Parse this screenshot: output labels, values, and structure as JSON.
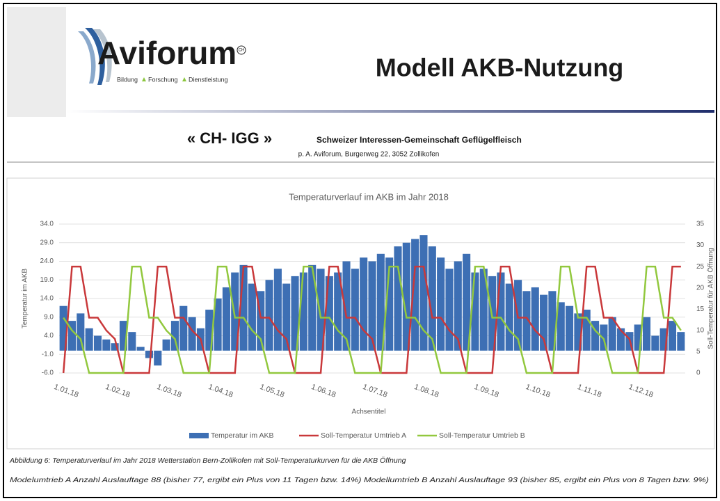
{
  "header": {
    "logo": "Aviforum",
    "logo_mark": "CH",
    "tagline": [
      "Bildung",
      "Forschung",
      "Dienstleistung"
    ],
    "title": "Modell AKB-Nutzung"
  },
  "org": {
    "short": "« CH- IGG »",
    "name": "Schweizer Interessen-Gemeinschaft Geflügelfleisch",
    "address": "p. A. Aviforum, Burgerweg 22, 3052 Zollikofen"
  },
  "chart_data": {
    "type": "bar",
    "title": "Temperaturverlauf im AKB im Jahr 2018",
    "xlabel": "Achsentitel",
    "ylabel": "Temperatur im AKB",
    "y2label": "Soll-Temperatur für AKB Öffnung",
    "categories": [
      "1.01.18",
      null,
      null,
      null,
      null,
      null,
      "1.02.18",
      null,
      null,
      null,
      null,
      null,
      "1.03.18",
      null,
      null,
      null,
      null,
      null,
      "1.04.18",
      null,
      null,
      null,
      null,
      null,
      "1.05.18",
      null,
      null,
      null,
      null,
      null,
      "1.06.18",
      null,
      null,
      null,
      null,
      null,
      "1.07.18",
      null,
      null,
      null,
      null,
      null,
      "1.08.18",
      null,
      null,
      null,
      null,
      null,
      null,
      "1.09.18",
      null,
      null,
      null,
      null,
      null,
      "1.10.18",
      null,
      null,
      null,
      null,
      null,
      "1.11.18",
      null,
      null,
      null,
      null,
      null,
      "1.12.18",
      null,
      null,
      null,
      null,
      null
    ],
    "series": [
      {
        "name": "Temperatur im AKB",
        "type": "bar",
        "color": "#3d6fb4",
        "values": [
          12,
          8,
          10,
          6,
          4,
          3,
          2,
          8,
          5,
          1,
          -2,
          -4,
          3,
          8,
          12,
          9,
          6,
          11,
          14,
          17,
          21,
          23,
          18,
          16,
          19,
          22,
          18,
          20,
          21,
          23,
          22,
          20,
          21,
          24,
          22,
          25,
          24,
          26,
          25,
          28,
          29,
          30,
          31,
          28,
          25,
          22,
          24,
          26,
          21,
          22,
          20,
          21,
          18,
          19,
          16,
          17,
          15,
          16,
          13,
          12,
          10,
          11,
          8,
          7,
          9,
          6,
          5,
          7,
          9,
          4,
          6,
          8,
          5
        ]
      },
      {
        "name": "Soll-Temperatur Umtrieb A",
        "type": "line",
        "axis": "y2",
        "color": "#c9383a",
        "values": [
          0,
          25,
          25,
          13,
          13,
          10,
          8,
          0,
          0,
          0,
          0,
          25,
          25,
          13,
          13,
          10,
          8,
          0,
          0,
          0,
          0,
          25,
          25,
          13,
          13,
          10,
          8,
          0,
          0,
          0,
          0,
          25,
          25,
          13,
          13,
          10,
          8,
          0,
          0,
          0,
          0,
          25,
          25,
          13,
          13,
          10,
          8,
          0,
          0,
          0,
          0,
          25,
          25,
          13,
          13,
          10,
          8,
          0,
          0,
          0,
          0,
          25,
          25,
          13,
          13,
          10,
          8,
          0,
          0,
          0,
          0,
          25,
          25
        ]
      },
      {
        "name": "Soll-Temperatur Umtrieb B",
        "type": "line",
        "axis": "y2",
        "color": "#92c83e",
        "values": [
          13,
          10,
          8,
          0,
          0,
          0,
          0,
          0,
          25,
          25,
          13,
          13,
          10,
          8,
          0,
          0,
          0,
          0,
          25,
          25,
          13,
          13,
          10,
          8,
          0,
          0,
          0,
          0,
          25,
          25,
          13,
          13,
          10,
          8,
          0,
          0,
          0,
          0,
          25,
          25,
          13,
          13,
          10,
          8,
          0,
          0,
          0,
          0,
          25,
          25,
          13,
          13,
          10,
          8,
          0,
          0,
          0,
          0,
          25,
          25,
          13,
          13,
          10,
          8,
          0,
          0,
          0,
          0,
          25,
          25,
          13,
          13,
          10
        ]
      }
    ],
    "ylim": [
      -6,
      34
    ],
    "yticks": [
      {
        "value": -6,
        "label": "-6.0"
      },
      {
        "value": -1,
        "label": "-1.0"
      },
      {
        "value": 4,
        "label": "4.0"
      },
      {
        "value": 9,
        "label": "9.0"
      },
      {
        "value": 14,
        "label": "14.0"
      },
      {
        "value": 19,
        "label": "19.0"
      },
      {
        "value": 24,
        "label": "24.0"
      },
      {
        "value": 29,
        "label": "29.0"
      },
      {
        "value": 34,
        "label": "34.0"
      }
    ],
    "y2lim": [
      0,
      35
    ],
    "y2ticks": [
      0,
      5,
      10,
      15,
      20,
      25,
      30,
      35
    ],
    "grid": true,
    "legend": "bottom"
  },
  "captions": [
    "Abbildung 6: Temperaturverlauf im Jahr 2018 Wetterstation Bern-Zollikofen mit Soll-Temperaturkurven für die AKB Öffnung",
    "Modelumtrieb A Anzahl Auslauftage 88 (bisher 77, ergibt ein Plus von 11 Tagen bzw. 14%) Modellumtrieb B Anzahl Auslauftage 93 (bisher 85, ergibt ein Plus von 8 Tagen bzw. 9%)"
  ]
}
